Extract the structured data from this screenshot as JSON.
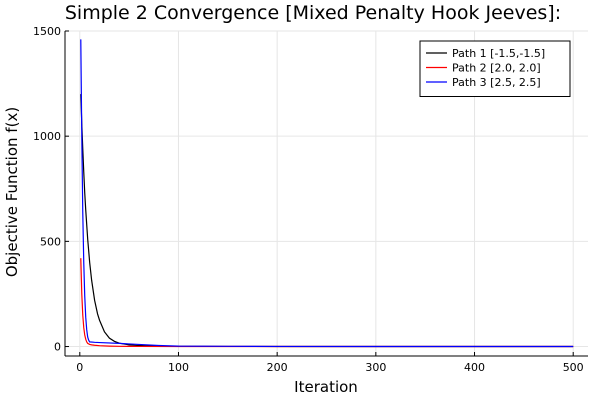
{
  "chart_data": {
    "type": "line",
    "title": "Simple 2 Convergence [Mixed Penalty Hook Jeeves]:",
    "xlabel": "Iteration",
    "ylabel": "Objective Function f(x)",
    "xlim": [
      -15,
      515
    ],
    "ylim": [
      -45,
      1500
    ],
    "xticks": [
      0,
      100,
      200,
      300,
      400,
      500
    ],
    "yticks": [
      0,
      500,
      1000,
      1500
    ],
    "xtick_labels": [
      "0",
      "100",
      "200",
      "300",
      "400",
      "500"
    ],
    "ytick_labels": [
      "0",
      "500",
      "1000",
      "1500"
    ],
    "grid": true,
    "legend_position": "top-right",
    "series": [
      {
        "name": "Path 1 [-1.5,-1.5]",
        "color": "#000000",
        "x": [
          1,
          2,
          3,
          4,
          5,
          6,
          8,
          10,
          12,
          15,
          18,
          20,
          25,
          30,
          35,
          40,
          50,
          60,
          70,
          80,
          90,
          100,
          150,
          200,
          300,
          400,
          500
        ],
        "y": [
          1200,
          1060,
          940,
          830,
          730,
          650,
          510,
          400,
          315,
          220,
          155,
          125,
          70,
          40,
          25,
          16,
          8,
          5,
          3,
          2,
          1.5,
          1,
          0.5,
          0.3,
          0.2,
          0.1,
          0.1
        ]
      },
      {
        "name": "Path 2 [2.0, 2.0]",
        "color": "#ff0000",
        "x": [
          1,
          2,
          3,
          4,
          5,
          6,
          7,
          8,
          10,
          12,
          15,
          20,
          30,
          40,
          60,
          100,
          200,
          300,
          400,
          500
        ],
        "y": [
          420,
          250,
          150,
          90,
          55,
          35,
          22,
          15,
          10,
          8,
          6,
          4,
          2,
          1,
          0.5,
          0.2,
          0.1,
          0.1,
          0.1,
          0.1
        ]
      },
      {
        "name": "Path 3 [2.5, 2.5]",
        "color": "#0000ff",
        "x": [
          1,
          2,
          3,
          4,
          5,
          6,
          7,
          8,
          9,
          10,
          15,
          20,
          40,
          60,
          80,
          100,
          150,
          200,
          300,
          400,
          500
        ],
        "y": [
          1460,
          1000,
          640,
          400,
          240,
          140,
          80,
          45,
          30,
          22,
          20,
          19,
          15,
          10,
          5,
          2,
          1,
          0.5,
          0.2,
          0.1,
          0.1
        ]
      }
    ]
  }
}
